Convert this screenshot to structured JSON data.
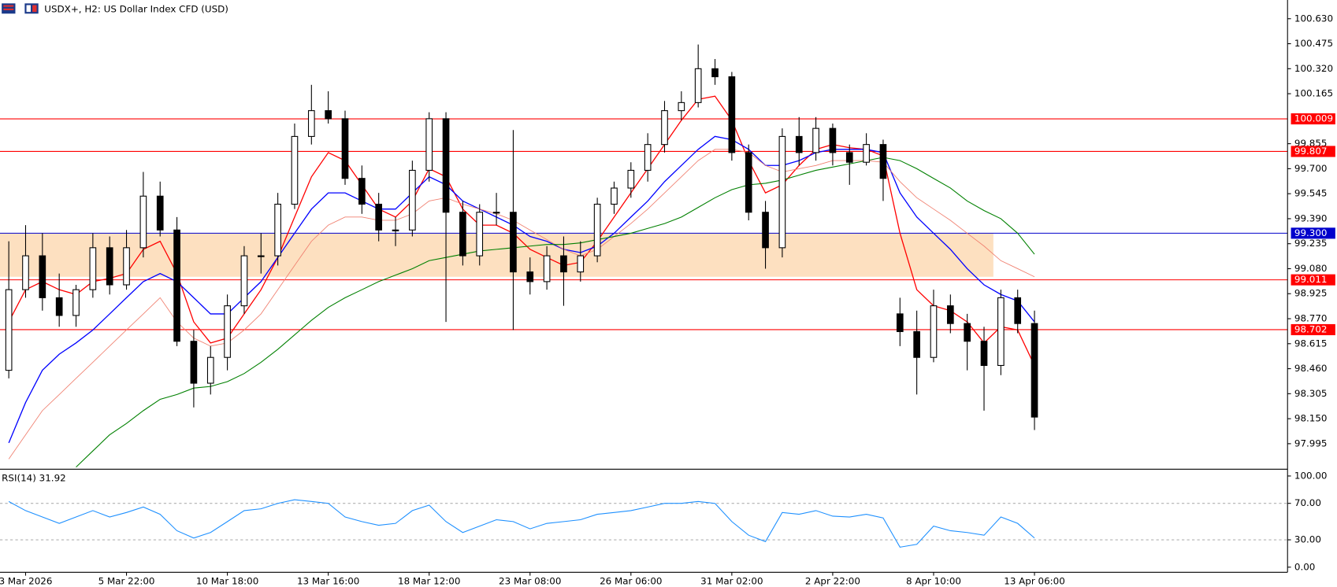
{
  "chart_data": {
    "type": "candlestick",
    "title": "USDX+, H2:  US Dollar Index CFD (USD)",
    "categories": [
      null,
      "3 Mar 2026",
      null,
      null,
      null,
      null,
      null,
      "5 Mar 22:00",
      null,
      null,
      null,
      null,
      null,
      "10 Mar 18:00",
      null,
      null,
      null,
      null,
      null,
      "13 Mar 16:00",
      null,
      null,
      null,
      null,
      null,
      "18 Mar 12:00",
      null,
      null,
      null,
      null,
      null,
      "23 Mar 08:00",
      null,
      null,
      null,
      null,
      null,
      "26 Mar 06:00",
      null,
      null,
      null,
      null,
      null,
      "31 Mar 02:00",
      null,
      null,
      null,
      null,
      null,
      "2 Apr 22:00",
      null,
      null,
      null,
      null,
      null,
      "8 Apr 10:00",
      null,
      null,
      null,
      null,
      null,
      "13 Apr 06:00"
    ],
    "open": [
      98.45,
      98.95,
      99.16,
      98.9,
      98.79,
      98.95,
      99.21,
      98.98,
      99.21,
      99.53,
      99.32,
      98.63,
      98.37,
      98.53,
      98.85,
      99.16,
      99.16,
      99.48,
      99.9,
      100.06,
      100.01,
      99.64,
      99.48,
      99.32,
      99.32,
      99.69,
      100.01,
      99.43,
      99.16,
      99.43,
      99.43,
      99.06,
      99.0,
      99.16,
      99.06,
      99.16,
      99.48,
      99.58,
      99.69,
      99.85,
      100.06,
      100.11,
      100.32,
      100.27,
      99.8,
      99.43,
      99.21,
      99.9,
      99.8,
      99.95,
      99.8,
      99.74,
      99.85,
      98.8,
      98.69,
      98.53,
      98.85,
      98.74,
      98.63,
      98.48,
      98.9,
      98.74
    ],
    "high": [
      99.25,
      99.35,
      99.3,
      99.05,
      98.98,
      99.3,
      99.28,
      99.32,
      99.68,
      99.62,
      99.4,
      98.7,
      98.6,
      98.92,
      99.22,
      99.3,
      99.55,
      99.98,
      100.22,
      100.18,
      100.06,
      99.72,
      99.55,
      99.4,
      99.75,
      100.05,
      100.05,
      99.5,
      99.48,
      99.55,
      99.94,
      99.15,
      99.22,
      99.28,
      99.25,
      99.52,
      99.62,
      99.74,
      99.92,
      100.12,
      100.18,
      100.47,
      100.38,
      100.3,
      99.85,
      99.5,
      99.95,
      100.02,
      100.02,
      99.98,
      99.85,
      99.92,
      99.88,
      98.9,
      98.82,
      98.95,
      98.92,
      98.8,
      98.72,
      98.95,
      98.95,
      98.82
    ],
    "low": [
      98.4,
      98.9,
      98.82,
      98.72,
      98.72,
      98.9,
      98.92,
      98.95,
      99.15,
      99.28,
      98.6,
      98.22,
      98.3,
      98.45,
      98.8,
      99.05,
      99.1,
      99.45,
      99.85,
      99.98,
      99.6,
      99.42,
      99.25,
      99.22,
      99.28,
      99.62,
      98.75,
      99.1,
      99.1,
      99.35,
      98.7,
      98.92,
      98.95,
      98.85,
      99.0,
      99.12,
      99.42,
      99.52,
      99.62,
      99.8,
      100.0,
      100.08,
      100.22,
      99.75,
      99.38,
      99.08,
      99.15,
      99.72,
      99.75,
      99.72,
      99.6,
      99.72,
      99.5,
      98.6,
      98.3,
      98.5,
      98.68,
      98.45,
      98.2,
      98.42,
      98.68,
      98.08
    ],
    "close": [
      98.95,
      99.16,
      98.9,
      98.79,
      98.95,
      99.21,
      98.98,
      99.21,
      99.53,
      99.32,
      98.63,
      98.37,
      98.53,
      98.85,
      99.16,
      99.16,
      99.48,
      99.9,
      100.06,
      100.01,
      99.64,
      99.48,
      99.32,
      99.32,
      99.69,
      100.01,
      99.43,
      99.16,
      99.43,
      99.43,
      99.06,
      99.0,
      99.16,
      99.06,
      99.16,
      99.48,
      99.58,
      99.69,
      99.85,
      100.06,
      100.11,
      100.32,
      100.27,
      99.8,
      99.43,
      99.21,
      99.9,
      99.8,
      99.95,
      99.8,
      99.74,
      99.85,
      99.64,
      98.69,
      98.53,
      98.85,
      98.74,
      98.63,
      98.48,
      98.9,
      98.74,
      98.16
    ],
    "series": [
      {
        "color": "#ff0000",
        "width": 1.2,
        "values": [
          98.75,
          98.95,
          99.0,
          98.95,
          98.92,
          99.0,
          99.02,
          99.05,
          99.2,
          99.25,
          99.05,
          98.75,
          98.62,
          98.65,
          98.8,
          98.95,
          99.15,
          99.4,
          99.65,
          99.8,
          99.75,
          99.6,
          99.45,
          99.4,
          99.5,
          99.7,
          99.65,
          99.45,
          99.35,
          99.35,
          99.3,
          99.2,
          99.15,
          99.1,
          99.12,
          99.25,
          99.4,
          99.55,
          99.7,
          99.85,
          100.0,
          100.13,
          100.15,
          100.0,
          99.75,
          99.55,
          99.6,
          99.72,
          99.82,
          99.85,
          99.83,
          99.82,
          99.78,
          99.3,
          98.95,
          98.85,
          98.82,
          98.75,
          98.62,
          98.72,
          98.7,
          98.48
        ]
      },
      {
        "color": "#0000ff",
        "width": 1.2,
        "values": [
          98.0,
          98.25,
          98.45,
          98.55,
          98.62,
          98.7,
          98.8,
          98.9,
          99.0,
          99.05,
          99.0,
          98.9,
          98.8,
          98.8,
          98.9,
          99.0,
          99.15,
          99.3,
          99.45,
          99.55,
          99.55,
          99.5,
          99.45,
          99.45,
          99.55,
          99.65,
          99.6,
          99.5,
          99.45,
          99.4,
          99.35,
          99.28,
          99.25,
          99.2,
          99.18,
          99.22,
          99.3,
          99.4,
          99.5,
          99.62,
          99.72,
          99.82,
          99.9,
          99.88,
          99.82,
          99.72,
          99.72,
          99.75,
          99.8,
          99.82,
          99.82,
          99.82,
          99.8,
          99.55,
          99.4,
          99.3,
          99.2,
          99.08,
          98.98,
          98.92,
          98.88,
          98.75
        ]
      },
      {
        "color": "#f08070",
        "width": 0.8,
        "values": [
          97.9,
          98.05,
          98.2,
          98.3,
          98.4,
          98.5,
          98.6,
          98.7,
          98.8,
          98.9,
          98.75,
          98.65,
          98.6,
          98.62,
          98.7,
          98.8,
          98.95,
          99.1,
          99.25,
          99.35,
          99.4,
          99.4,
          99.38,
          99.38,
          99.42,
          99.5,
          99.52,
          99.48,
          99.45,
          99.42,
          99.38,
          99.32,
          99.26,
          99.2,
          99.16,
          99.2,
          99.28,
          99.36,
          99.45,
          99.55,
          99.65,
          99.75,
          99.82,
          99.82,
          99.8,
          99.72,
          99.68,
          99.7,
          99.72,
          99.75,
          99.75,
          99.75,
          99.74,
          99.62,
          99.52,
          99.45,
          99.38,
          99.3,
          99.22,
          99.13,
          99.08,
          99.03
        ]
      },
      {
        "color": "#008000",
        "width": 1.0,
        "values": [
          null,
          null,
          null,
          null,
          97.85,
          97.95,
          98.05,
          98.12,
          98.2,
          98.27,
          98.3,
          98.34,
          98.35,
          98.38,
          98.43,
          98.5,
          98.58,
          98.67,
          98.76,
          98.84,
          98.9,
          98.95,
          99.0,
          99.04,
          99.08,
          99.13,
          99.15,
          99.17,
          99.19,
          99.2,
          99.21,
          99.22,
          99.23,
          99.23,
          99.24,
          99.26,
          99.28,
          99.3,
          99.33,
          99.36,
          99.4,
          99.46,
          99.52,
          99.57,
          99.6,
          99.61,
          99.63,
          99.66,
          99.69,
          99.71,
          99.73,
          99.75,
          99.77,
          99.75,
          99.7,
          99.64,
          99.58,
          99.5,
          99.44,
          99.39,
          99.3,
          99.17
        ]
      }
    ],
    "zone": {
      "from": 99.03,
      "to": 99.3,
      "color": "#fde0c0"
    },
    "levels": [
      {
        "value": 100.009,
        "label": "100.009",
        "color": "#ff0000"
      },
      {
        "value": 99.807,
        "label": "99.807",
        "color": "#ff0000"
      },
      {
        "value": 99.3,
        "label": "99.300",
        "color": "#0000cc"
      },
      {
        "value": 99.011,
        "label": "99.011",
        "color": "#ff0000"
      },
      {
        "value": 98.702,
        "label": "98.702",
        "color": "#ff0000"
      }
    ],
    "ylim": [
      97.842,
      100.746
    ],
    "yticks": [
      {
        "value": 100.63,
        "label": "100.630"
      },
      {
        "value": 100.475,
        "label": "100.475"
      },
      {
        "value": 100.32,
        "label": "100.320"
      },
      {
        "value": 100.165,
        "label": "100.165"
      },
      {
        "value": 99.855,
        "label": "99.855"
      },
      {
        "value": 99.7,
        "label": "99.700"
      },
      {
        "value": 99.545,
        "label": "99.545"
      },
      {
        "value": 99.39,
        "label": "99.390"
      },
      {
        "value": 99.235,
        "label": "99.235"
      },
      {
        "value": 99.08,
        "label": "99.080"
      },
      {
        "value": 98.925,
        "label": "98.925"
      },
      {
        "value": 98.77,
        "label": "98.770"
      },
      {
        "value": 98.615,
        "label": "98.615"
      },
      {
        "value": 98.46,
        "label": "98.460"
      },
      {
        "value": 98.305,
        "label": "98.305"
      },
      {
        "value": 98.15,
        "label": "98.150"
      },
      {
        "value": 97.995,
        "label": "97.995"
      }
    ],
    "rsi": {
      "label": "RSI(14) 31.92",
      "color": "#1e90ff",
      "values": [
        72,
        62,
        55,
        48,
        55,
        62,
        55,
        60,
        66,
        58,
        40,
        32,
        38,
        50,
        62,
        64,
        70,
        74,
        72,
        70,
        55,
        50,
        46,
        48,
        62,
        68,
        50,
        38,
        45,
        52,
        50,
        42,
        48,
        50,
        52,
        58,
        60,
        62,
        66,
        70,
        70,
        72,
        70,
        50,
        35,
        28,
        60,
        58,
        62,
        56,
        55,
        58,
        54,
        22,
        25,
        45,
        40,
        38,
        35,
        55,
        48,
        31.92
      ],
      "ylim": [
        -5.6,
        106.5
      ],
      "yticks": [
        {
          "value": 100,
          "label": "100.00"
        },
        {
          "value": 70,
          "label": "70.00"
        },
        {
          "value": 30,
          "label": "30.00"
        },
        {
          "value": 0,
          "label": "0.00"
        }
      ],
      "levels": [
        70,
        30
      ]
    }
  }
}
